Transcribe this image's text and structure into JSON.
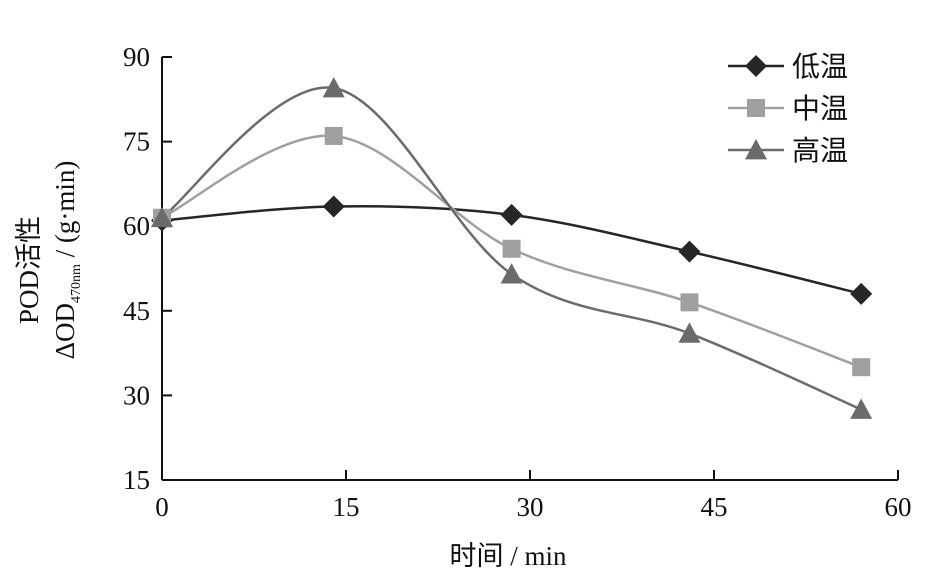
{
  "chart_data": {
    "type": "line",
    "xlabel": "时间 / min",
    "ylabel": {
      "line1": "POD活性",
      "line2_prefix": "ΔOD",
      "line2_subscript": "470nm",
      "line2_suffix": " / (g·min)"
    },
    "xlim": [
      0,
      60
    ],
    "ylim": [
      15,
      90
    ],
    "xticks": [
      0,
      15,
      30,
      45,
      60
    ],
    "yticks": [
      15,
      30,
      45,
      60,
      75,
      90
    ],
    "x": [
      0,
      14,
      28.5,
      43,
      57
    ],
    "series": [
      {
        "name": "低温",
        "marker": "diamond",
        "color": "#262626",
        "values": [
          61,
          63.5,
          62,
          55.5,
          48
        ]
      },
      {
        "name": "中温",
        "marker": "square",
        "color": "#a0a0a0",
        "values": [
          61.5,
          76,
          56,
          46.5,
          35
        ]
      },
      {
        "name": "高温",
        "marker": "triangle",
        "color": "#6b6b6b",
        "values": [
          61.5,
          84.5,
          51.5,
          41,
          27.5
        ]
      }
    ],
    "legend_position": "top-right",
    "grid": false
  }
}
